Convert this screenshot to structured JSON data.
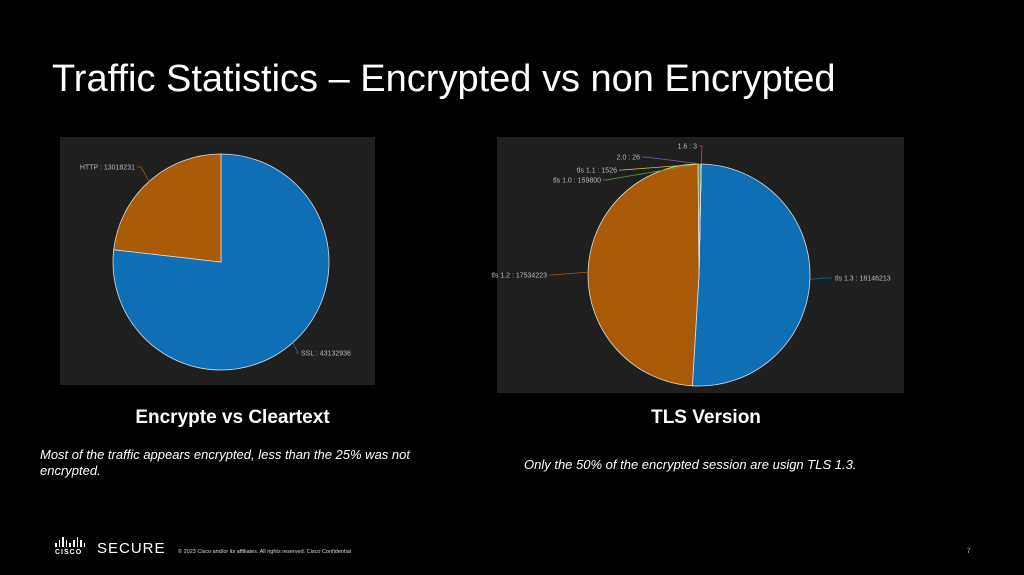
{
  "slide": {
    "title": "Traffic Statistics – Encrypted vs non Encrypted",
    "footer": {
      "brand_word": "CISCO",
      "product": "SECURE",
      "copyright": "© 2023  Cisco and/or its affiliates. All rights reserved.   Cisco Confidential",
      "page_number": "7"
    }
  },
  "chart_data": [
    {
      "type": "pie",
      "title": "Encrypte vs Cleartext",
      "caption": "Most of the traffic appears encrypted, less than the 25% was not encrypted.",
      "slices": [
        {
          "label": "SSL : 43132936",
          "value": 43132936,
          "color": "#0f6fb4"
        },
        {
          "label": "HTTP : 13018231",
          "value": 13018231,
          "color": "#a85a06"
        }
      ],
      "panel_bg": "#1f1f1f"
    },
    {
      "type": "pie",
      "title": "TLS Version",
      "caption": "Only the 50% of the encrypted session are usign TLS 1.3.",
      "slices": [
        {
          "label": "tls 1.3 : 18146213",
          "value": 18146213,
          "color": "#0f6fb4"
        },
        {
          "label": "tls 1.2 : 17534223",
          "value": 17534223,
          "color": "#a85a06"
        },
        {
          "label": "tls 1.0 : 159800",
          "value": 159800,
          "color": "#5a9e2f"
        },
        {
          "label": "tls 1.1 : 1526",
          "value": 1526,
          "color": "#d9c23a"
        },
        {
          "label": "2.0 : 26",
          "value": 26,
          "color": "#7d5fb0"
        },
        {
          "label": "1.6 : 3",
          "value": 3,
          "color": "#c94a4a"
        }
      ],
      "panel_bg": "#1f1f1f"
    }
  ]
}
